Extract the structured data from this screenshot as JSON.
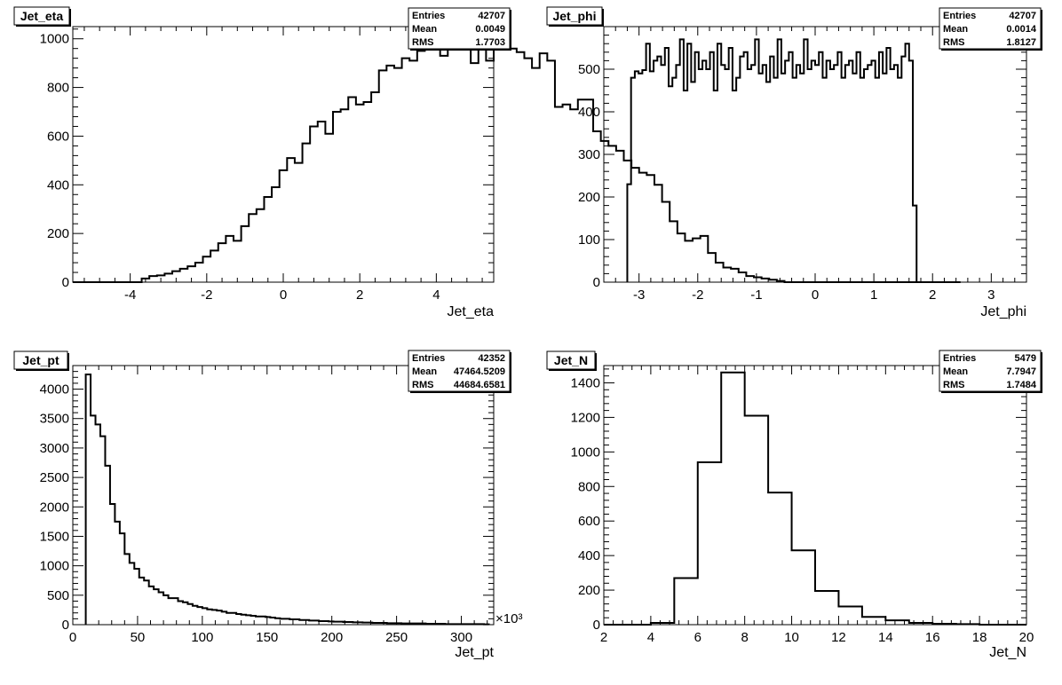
{
  "chart_data": [
    {
      "type": "bar",
      "title": "Jet_eta",
      "xlabel": "Jet_eta",
      "ylabel": "",
      "xlim": [
        -5.5,
        5.5
      ],
      "ylim": [
        0,
        1050
      ],
      "xticks": [
        -4,
        -2,
        0,
        2,
        4
      ],
      "yticks": [
        0,
        200,
        400,
        600,
        800,
        1000
      ],
      "grid": false,
      "stats": {
        "entries": "42707",
        "mean": "0.0049",
        "rms": "1.7703"
      },
      "bin_edges_start": -5.5,
      "bin_width": 0.2,
      "values": [
        0,
        0,
        0,
        0,
        0,
        0,
        0,
        0,
        0,
        15,
        25,
        28,
        35,
        45,
        55,
        65,
        80,
        105,
        130,
        160,
        190,
        170,
        230,
        280,
        300,
        350,
        390,
        460,
        510,
        490,
        570,
        640,
        660,
        610,
        700,
        710,
        760,
        730,
        740,
        780,
        870,
        890,
        880,
        920,
        910,
        950,
        965,
        990,
        930,
        980,
        1000,
        980,
        900,
        980,
        910,
        990,
        995,
        960,
        945,
        920,
        880,
        940,
        910,
        720,
        730,
        710,
        750,
        750,
        620,
        580,
        560,
        540,
        500,
        470,
        450,
        440,
        400,
        330,
        250,
        200,
        170,
        180,
        190,
        120,
        80,
        60,
        55,
        40,
        25,
        20,
        15,
        10,
        5,
        0,
        0,
        0,
        0,
        0,
        0,
        0,
        0,
        0,
        0,
        0,
        0,
        0,
        0,
        0,
        0,
        0,
        0,
        0,
        0,
        0,
        0,
        0
      ]
    },
    {
      "type": "bar",
      "title": "Jet_phi",
      "xlabel": "Jet_phi",
      "ylabel": "",
      "xlim": [
        -3.6,
        3.6
      ],
      "ylim": [
        0,
        600
      ],
      "xticks": [
        -3,
        -2,
        -1,
        0,
        1,
        2,
        3
      ],
      "yticks": [
        0,
        100,
        200,
        300,
        400,
        500
      ],
      "grid": false,
      "stats": {
        "entries": "42707",
        "mean": "0.0014",
        "rms": "1.8127"
      },
      "bin_edges_start": -3.2,
      "bin_width": 0.064,
      "values": [
        230,
        480,
        495,
        490,
        498,
        560,
        495,
        520,
        530,
        510,
        550,
        460,
        480,
        510,
        570,
        450,
        560,
        470,
        540,
        500,
        520,
        500,
        540,
        450,
        560,
        510,
        500,
        550,
        450,
        480,
        530,
        540,
        500,
        510,
        570,
        490,
        510,
        470,
        530,
        480,
        570,
        490,
        520,
        540,
        480,
        510,
        490,
        570,
        500,
        520,
        510,
        540,
        480,
        520,
        500,
        510,
        540,
        480,
        510,
        520,
        490,
        540,
        480,
        500,
        510,
        520,
        480,
        540,
        490,
        550,
        500,
        510,
        480,
        530,
        560,
        520,
        180
      ]
    },
    {
      "type": "bar",
      "title": "Jet_pt",
      "xlabel": "Jet_pt",
      "ylabel": "",
      "x_multiplier": "×10³",
      "xlim": [
        0,
        325
      ],
      "ylim": [
        0,
        4400
      ],
      "xticks": [
        0,
        50,
        100,
        150,
        200,
        250,
        300
      ],
      "yticks": [
        0,
        500,
        1000,
        1500,
        2000,
        2500,
        3000,
        3500,
        4000
      ],
      "grid": false,
      "stats": {
        "entries": "42352",
        "mean": "47464.5209",
        "rms": "44684.6581"
      },
      "bin_edges_start": 10,
      "bin_width": 3.75,
      "values": [
        4250,
        3550,
        3400,
        3200,
        2700,
        2050,
        1750,
        1550,
        1200,
        1050,
        950,
        800,
        750,
        650,
        600,
        550,
        500,
        450,
        450,
        400,
        380,
        350,
        320,
        300,
        280,
        260,
        250,
        240,
        220,
        200,
        200,
        180,
        170,
        160,
        150,
        140,
        140,
        130,
        120,
        110,
        100,
        100,
        90,
        90,
        80,
        80,
        70,
        70,
        60,
        60,
        55,
        50,
        50,
        45,
        45,
        40,
        40,
        35,
        35,
        30,
        30,
        30,
        25,
        25,
        25,
        20,
        20,
        20,
        20,
        20,
        15,
        15,
        15,
        15,
        10,
        10,
        10,
        10,
        10,
        10,
        10,
        10,
        5
      ]
    },
    {
      "type": "bar",
      "title": "Jet_N",
      "xlabel": "Jet_N",
      "ylabel": "",
      "xlim": [
        2,
        20
      ],
      "ylim": [
        0,
        1500
      ],
      "xticks": [
        2,
        4,
        6,
        8,
        10,
        12,
        14,
        16,
        18,
        20
      ],
      "yticks": [
        0,
        200,
        400,
        600,
        800,
        1000,
        1200,
        1400
      ],
      "grid": false,
      "stats": {
        "entries": "5479",
        "mean": "7.7947",
        "rms": "1.7484"
      },
      "bin_edges_start": 2,
      "bin_width": 1,
      "values": [
        0,
        0,
        10,
        270,
        940,
        1460,
        1210,
        765,
        430,
        195,
        105,
        45,
        25,
        10,
        5,
        3,
        0,
        0
      ]
    }
  ],
  "stats_labels": {
    "entries": "Entries",
    "mean": "Mean",
    "rms": "RMS"
  }
}
